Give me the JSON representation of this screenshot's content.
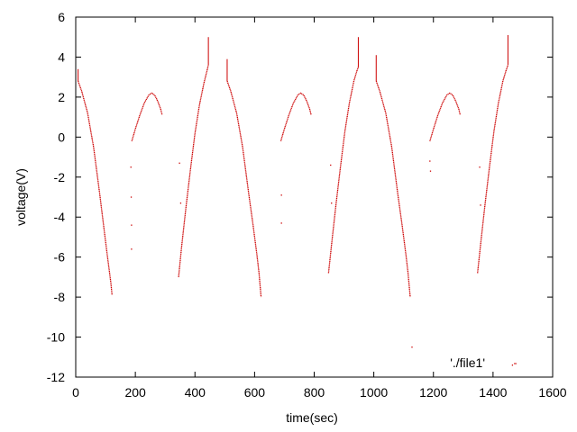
{
  "chart_data": {
    "type": "scatter",
    "title": "",
    "xlabel": "time(sec)",
    "ylabel": "voltage(V)",
    "xlim": [
      0,
      1600
    ],
    "ylim": [
      -12,
      6
    ],
    "xticks": [
      0,
      200,
      400,
      600,
      800,
      1000,
      1200,
      1400,
      1600
    ],
    "yticks": [
      -12,
      -10,
      -8,
      -6,
      -4,
      -2,
      0,
      2,
      4,
      6
    ],
    "grid": false,
    "legend_position": "bottom-right",
    "series": [
      {
        "name": "'./file1'",
        "color": "#cc0000",
        "marker": "dot",
        "segments": [
          {
            "x": [
              8,
              20,
              40,
              60,
              80,
              95,
              105,
              112,
              118,
              122
            ],
            "y": [
              2.8,
              2.3,
              1.2,
              -0.5,
              -2.8,
              -4.6,
              -5.8,
              -6.6,
              -7.3,
              -7.9
            ]
          },
          {
            "x": [
              188,
              200,
              215,
              230,
              245,
              255,
              265,
              275,
              285,
              290
            ],
            "y": [
              -0.2,
              0.4,
              1.1,
              1.7,
              2.1,
              2.2,
              2.1,
              1.8,
              1.4,
              1.1
            ]
          },
          {
            "x": [
              345,
              355,
              370,
              385,
              400,
              415,
              430,
              440,
              445
            ],
            "y": [
              -7.0,
              -5.5,
              -3.5,
              -1.6,
              0.2,
              1.6,
              2.7,
              3.3,
              3.6
            ]
          },
          {
            "x": [
              508,
              520,
              540,
              560,
              580,
              595,
              608,
              615,
              622
            ],
            "y": [
              2.8,
              2.3,
              1.2,
              -0.5,
              -2.8,
              -4.4,
              -5.9,
              -6.8,
              -8.0
            ]
          },
          {
            "x": [
              688,
              700,
              715,
              730,
              745,
              755,
              765,
              775,
              785,
              790
            ],
            "y": [
              -0.2,
              0.4,
              1.1,
              1.7,
              2.1,
              2.2,
              2.1,
              1.8,
              1.4,
              1.1
            ]
          },
          {
            "x": [
              848,
              858,
              873,
              888,
              903,
              918,
              933,
              943,
              948
            ],
            "y": [
              -6.8,
              -5.4,
              -3.4,
              -1.5,
              0.3,
              1.7,
              2.8,
              3.3,
              3.5
            ]
          },
          {
            "x": [
              1008,
              1020,
              1040,
              1060,
              1080,
              1095,
              1108,
              1115,
              1122
            ],
            "y": [
              2.8,
              2.3,
              1.2,
              -0.5,
              -2.8,
              -4.4,
              -5.9,
              -6.8,
              -8.0
            ]
          },
          {
            "x": [
              1188,
              1200,
              1215,
              1230,
              1245,
              1255,
              1265,
              1275,
              1285,
              1290
            ],
            "y": [
              -0.2,
              0.4,
              1.1,
              1.7,
              2.1,
              2.2,
              2.1,
              1.8,
              1.4,
              1.1
            ]
          },
          {
            "x": [
              1348,
              1358,
              1373,
              1388,
              1403,
              1418,
              1433,
              1443,
              1450
            ],
            "y": [
              -6.8,
              -5.4,
              -3.4,
              -1.5,
              0.3,
              1.7,
              2.8,
              3.3,
              3.6
            ]
          }
        ],
        "spikes": [
          {
            "x": 8,
            "y0": 2.8,
            "y1": 3.4
          },
          {
            "x": 445,
            "y0": 3.6,
            "y1": 5.0
          },
          {
            "x": 508,
            "y0": 2.8,
            "y1": 3.9
          },
          {
            "x": 948,
            "y0": 3.5,
            "y1": 5.0
          },
          {
            "x": 1008,
            "y0": 2.8,
            "y1": 4.1
          },
          {
            "x": 1450,
            "y0": 3.6,
            "y1": 5.1
          }
        ],
        "outliers": {
          "x": [
            185,
            186,
            187,
            187,
            348,
            352,
            690,
            690,
            855,
            858,
            1128,
            1188,
            1190,
            1355,
            1358,
            1465
          ],
          "y": [
            -1.5,
            -3.0,
            -4.4,
            -5.6,
            -1.3,
            -3.3,
            -2.9,
            -4.3,
            -1.4,
            -3.3,
            -10.5,
            -1.2,
            -1.7,
            -1.5,
            -3.4,
            -11.4
          ]
        }
      }
    ]
  }
}
